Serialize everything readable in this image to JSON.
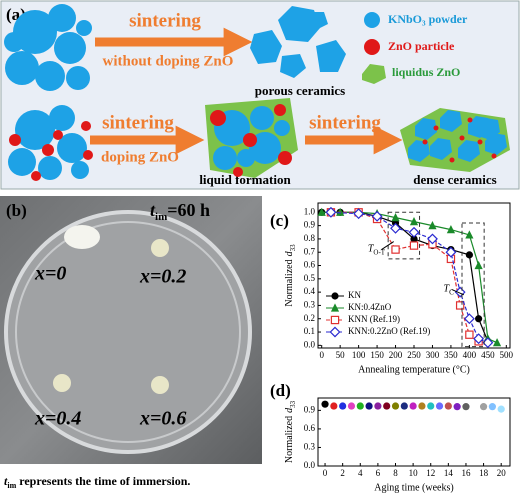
{
  "panel_a": {
    "label": "(a)",
    "legend": [
      "KNbO₃ powder",
      "ZnO particle",
      "liquidus ZnO"
    ],
    "row1": {
      "arrow_top": "sintering",
      "arrow_bottom": "without doping ZnO",
      "result": "porous ceramics"
    },
    "row2": {
      "arrow1_top": "sintering",
      "arrow1_bottom": "doping ZnO",
      "middle": "liquid formation",
      "arrow2_top": "sintering",
      "result": "dense ceramics"
    }
  },
  "panel_b": {
    "label": "(b)",
    "time_label": {
      "var": "t",
      "sub": "im",
      "rest": "=60 h"
    },
    "samples": [
      "x=0",
      "x=0.2",
      "x=0.4",
      "x=0.6"
    ],
    "caption": {
      "var": "t",
      "sub": "im",
      "rest": " represents the time of immersion."
    }
  },
  "chart_data": [
    {
      "type": "line",
      "panel": "(c)",
      "xlabel": "Annealing temperature (°C)",
      "ylabel": {
        "text": "Normalized",
        "var": "d",
        "sub": "33"
      },
      "xlim": [
        -10,
        510
      ],
      "ylim": [
        -0.02,
        1.07
      ],
      "xticks": [
        0,
        50,
        100,
        150,
        200,
        250,
        300,
        350,
        400,
        450,
        500
      ],
      "yticks": [
        {
          "value": 0,
          "label": "0.0"
        },
        0.1,
        0.2,
        0.3,
        0.4,
        0.5,
        0.6,
        0.7,
        0.8,
        0.9,
        {
          "value": 1,
          "label": "1.0"
        }
      ],
      "legend": "lower left",
      "annotations": [
        {
          "main": "T",
          "sub": "O-T"
        },
        {
          "main": "T",
          "sub": "C"
        }
      ],
      "series": [
        {
          "name": "KN",
          "color": "#000000",
          "marker": "circle",
          "dashed": false,
          "x": [
            0,
            50,
            100,
            150,
            200,
            250,
            300,
            350,
            400,
            425,
            450
          ],
          "values": [
            1.0,
            1.0,
            1.0,
            0.97,
            0.92,
            0.8,
            0.75,
            0.72,
            0.68,
            0.2,
            0.03
          ]
        },
        {
          "name": "KN:0.4ZnO",
          "color": "#1a8a2a",
          "marker": "triangle",
          "dashed": false,
          "x": [
            0,
            50,
            100,
            150,
            200,
            250,
            300,
            350,
            400,
            425,
            450,
            475
          ],
          "values": [
            1.0,
            1.0,
            1.0,
            0.99,
            0.96,
            0.93,
            0.9,
            0.87,
            0.83,
            0.6,
            0.05,
            0.02
          ]
        },
        {
          "name": "KNN (Ref.19)",
          "color": "#e03030",
          "marker": "square",
          "dashed": true,
          "x": [
            25,
            100,
            150,
            200,
            250,
            300,
            350,
            375,
            400,
            425
          ],
          "values": [
            1.0,
            1.0,
            0.95,
            0.72,
            0.75,
            0.76,
            0.65,
            0.3,
            0.08,
            0.03
          ]
        },
        {
          "name": "KNN:0.2ZnO (Ref.19)",
          "color": "#2a2ad0",
          "marker": "diamond",
          "dashed": true,
          "x": [
            25,
            100,
            150,
            200,
            250,
            300,
            350,
            375,
            400,
            425,
            450
          ],
          "values": [
            1.0,
            0.99,
            0.97,
            0.88,
            0.85,
            0.8,
            0.7,
            0.4,
            0.2,
            0.05,
            0.02
          ]
        }
      ]
    },
    {
      "type": "scatter",
      "panel": "(d)",
      "xlabel": "Aging time (weeks)",
      "ylabel": {
        "text": "Normalized",
        "var": "d",
        "sub": "33"
      },
      "xlim": [
        -0.8,
        21
      ],
      "ylim": [
        0,
        1.1
      ],
      "xticks": [
        0,
        2,
        4,
        6,
        8,
        10,
        12,
        14,
        16,
        18,
        20
      ],
      "yticks": [
        {
          "value": 0,
          "label": "0.0"
        },
        0.3,
        0.6,
        0.9
      ],
      "x": [
        0,
        1,
        2,
        3,
        4,
        5,
        6,
        7,
        8,
        9,
        10,
        11,
        12,
        13,
        14,
        15,
        16,
        18,
        19,
        20
      ],
      "values": [
        1.0,
        0.97,
        0.97,
        0.97,
        0.97,
        0.97,
        0.97,
        0.97,
        0.97,
        0.97,
        0.97,
        0.97,
        0.97,
        0.97,
        0.97,
        0.96,
        0.96,
        0.96,
        0.96,
        0.92
      ],
      "colors": [
        "#000000",
        "#e02020",
        "#2030e0",
        "#e040c0",
        "#20b020",
        "#101080",
        "#8a20a0",
        "#800020",
        "#808000",
        "#1c2c80",
        "#c020c0",
        "#b08020",
        "#20c0c0",
        "#6a6aff",
        "#c05050",
        "#8020c0",
        "#606060",
        "#a0a0a0",
        "#80c0ff",
        "#a0e0ff"
      ]
    }
  ]
}
